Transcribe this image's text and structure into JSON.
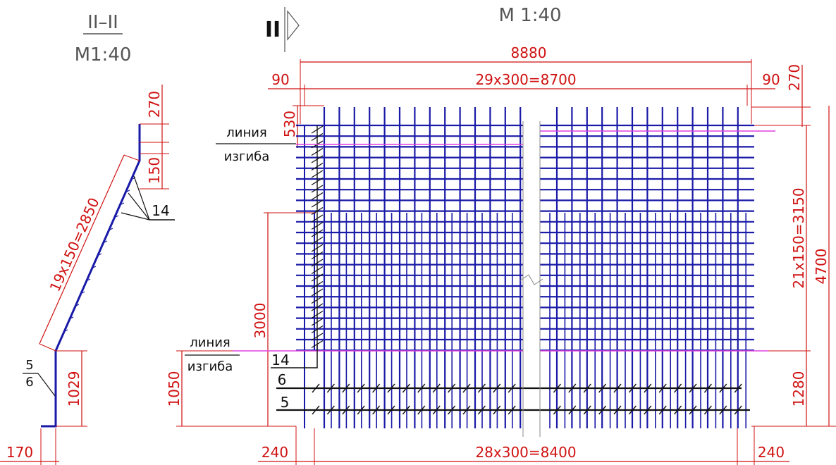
{
  "section": {
    "title": "II–II",
    "scale": "M1:40",
    "dimensions": {
      "top": "270",
      "step": "150",
      "slope": "19x150=2850",
      "vertical": "1029",
      "base": "170",
      "bar_callout": "14",
      "fraction_top": "5",
      "fraction_bottom": "6"
    }
  },
  "plan": {
    "section_mark": "II",
    "scale": "M 1:40",
    "dimensions": {
      "overall_width": "8880",
      "top_spacing": "29x300=8700",
      "top_left_edge": "90",
      "top_right_edge": "90",
      "top_right_offset": "270",
      "left_top_offset": "530",
      "left_lower_height": "3000",
      "left_bottom_height": "1050",
      "right_spacing": "21x150=3150",
      "right_overall": "4700",
      "right_bottom": "1280",
      "bottom_spacing": "28x300=8400",
      "bottom_left_edge": "240",
      "bottom_right_edge": "240"
    },
    "labels": {
      "bend_line_1": "линия",
      "bend_line_1b": "изгиба",
      "bend_line_2": "линия",
      "bend_line_2b": "изгиба",
      "pos_14": "14",
      "pos_6": "6",
      "pos_5": "5"
    }
  },
  "colors": {
    "rebar": "#1a1aa8",
    "dimension": "#d01010",
    "bend_line": "#e040e0",
    "text": "#111111"
  }
}
